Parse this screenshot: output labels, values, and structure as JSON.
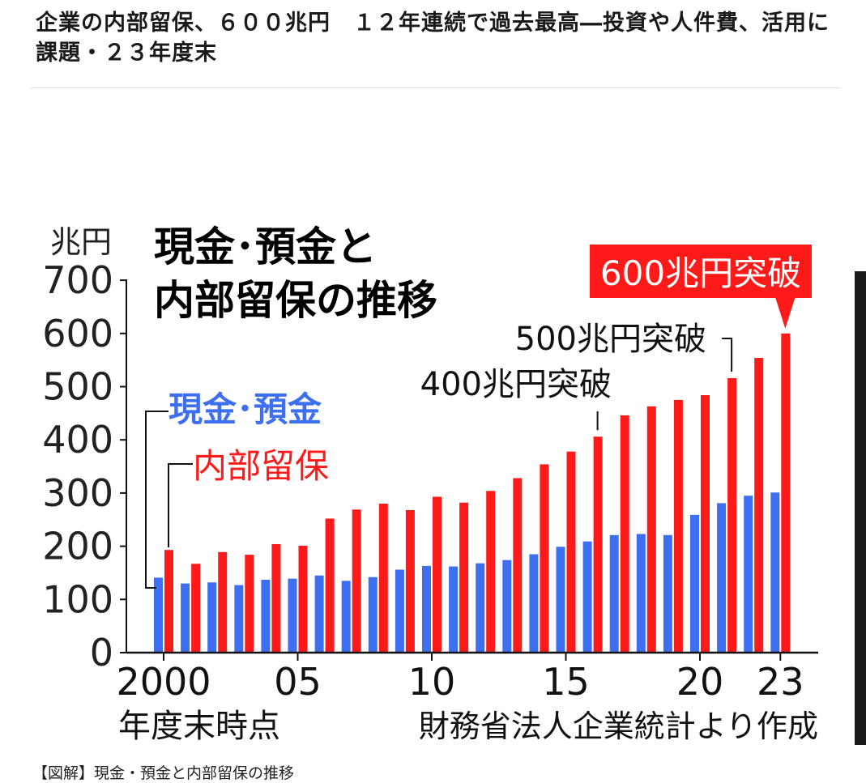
{
  "article": {
    "headline": "企業の内部留保、６００兆円　１２年連続で過去最高―投資や人件費、活用に課題・２３年度末"
  },
  "caption": "【図解】現金・預金と内部留保の推移",
  "chart_data": {
    "type": "bar",
    "title": "現金･預金と\n内部留保の推移",
    "title_line1": "現金･預金と",
    "title_line2": "内部留保の推移",
    "ylabel": "兆円",
    "xlabel": "年度末時点",
    "source": "財務省法人企業統計より作成",
    "ylim": [
      0,
      700
    ],
    "yticks": [
      "0",
      "100",
      "200",
      "300",
      "400",
      "500",
      "600",
      "700"
    ],
    "x": [
      2000,
      2001,
      2002,
      2003,
      2004,
      2005,
      2006,
      2007,
      2008,
      2009,
      2010,
      2011,
      2012,
      2013,
      2014,
      2015,
      2016,
      2017,
      2018,
      2019,
      2020,
      2021,
      2022,
      2023
    ],
    "xtick_labels": [
      {
        "x": 2000,
        "label": "2000"
      },
      {
        "x": 2005,
        "label": "05"
      },
      {
        "x": 2010,
        "label": "10"
      },
      {
        "x": 2015,
        "label": "15"
      },
      {
        "x": 2020,
        "label": "20"
      },
      {
        "x": 2023,
        "label": "23"
      }
    ],
    "series": [
      {
        "name": "現金･預金",
        "color": "#3d6ff0",
        "values": [
          141,
          130,
          132,
          127,
          137,
          139,
          145,
          135,
          142,
          156,
          163,
          162,
          168,
          174,
          185,
          199,
          209,
          221,
          223,
          221,
          259,
          281,
          295,
          301
        ]
      },
      {
        "name": "内部留保",
        "color": "#ff1a1a",
        "values": [
          193,
          167,
          189,
          184,
          204,
          201,
          252,
          269,
          280,
          268,
          293,
          282,
          304,
          328,
          354,
          378,
          406,
          446,
          463,
          475,
          484,
          516,
          554,
          600
        ]
      }
    ],
    "annotations": [
      {
        "x": 2016,
        "text": "400兆円突破"
      },
      {
        "x": 2021,
        "text": "500兆円突破"
      },
      {
        "x": 2023,
        "text": "600兆円突破",
        "highlight": true
      }
    ]
  }
}
